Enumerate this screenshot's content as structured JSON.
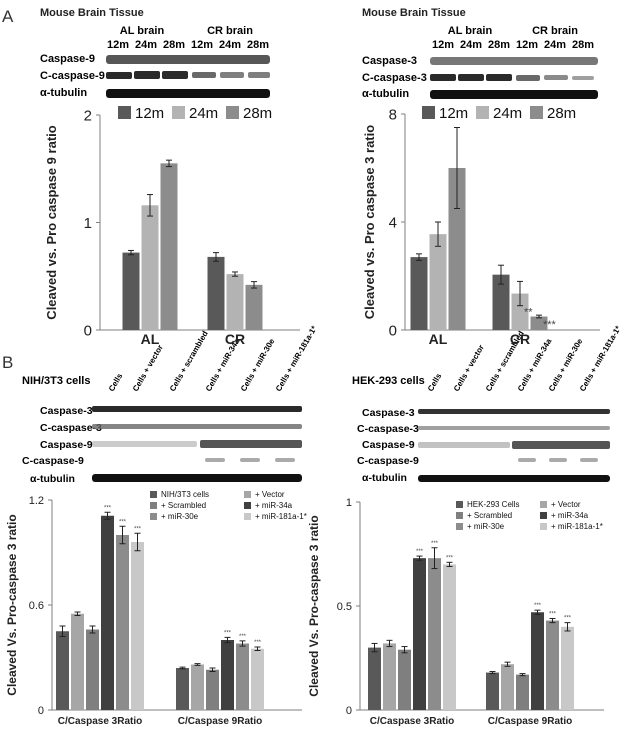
{
  "panels": {
    "A": "A",
    "B": "B"
  },
  "colors": {
    "s12m": "#595959",
    "s24m": "#b3b3b3",
    "s28m": "#8c8c8c",
    "nih": "#595959",
    "scr": "#7f7f7f",
    "e30": "#8c8c8c",
    "vec": "#a6a6a6",
    "m34": "#404040",
    "m181": "#c8c8c8"
  },
  "blotA1": {
    "header": "Mouse Brain Tissue",
    "groups": [
      "AL brain",
      "CR brain"
    ],
    "lanes": [
      "12m",
      "24m",
      "28m",
      "12m",
      "24m",
      "28m"
    ],
    "rows": [
      "Caspase-9",
      "C-caspase-9",
      "α-tubulin"
    ]
  },
  "blotA2": {
    "header": "Mouse Brain Tissue",
    "groups": [
      "AL brain",
      "CR brain"
    ],
    "lanes": [
      "12m",
      "24m",
      "28m",
      "12m",
      "24m",
      "28m"
    ],
    "rows": [
      "Caspase-3",
      "C-caspase-3",
      "α-tubulin"
    ]
  },
  "blotB1": {
    "header": "NIH/3T3 cells",
    "lanes": [
      "Cells",
      "Cells + vector",
      "Cells + scrambled",
      "Cells + miR-34a",
      "Cells + miR-30e",
      "Cells + miR-181a-1*"
    ],
    "rows": [
      "Caspase-3",
      "C-caspase-3",
      "Caspase-9",
      "C-caspase-9",
      "α-tubulin"
    ]
  },
  "blotB2": {
    "header": "HEK-293 cells",
    "lanes": [
      "Cells",
      "Cells + vector",
      "Cells + scrambled",
      "Cells + miR-34a",
      "Cells + miR-30e",
      "Cells + miR-181a-1*"
    ],
    "rows": [
      "Caspase-3",
      "C-caspase-3",
      "Caspase-9",
      "C-caspase-9",
      "α-tubulin"
    ]
  },
  "chart_data": [
    {
      "type": "bar",
      "id": "A1",
      "title": "",
      "xlabel": "",
      "ylabel": "Cleaved vs. Pro caspase 9 ratio",
      "ylim": [
        0,
        2
      ],
      "yticks": [
        "0",
        "1",
        "2"
      ],
      "categories": [
        "AL",
        "CR"
      ],
      "legend": "top",
      "series": [
        {
          "name": "12m",
          "values": [
            0.72,
            0.68
          ],
          "errors": [
            0.02,
            0.04
          ],
          "stars": [
            "",
            ""
          ]
        },
        {
          "name": "24m",
          "values": [
            1.16,
            0.52
          ],
          "errors": [
            0.1,
            0.02
          ],
          "stars": [
            "",
            ""
          ]
        },
        {
          "name": "28m",
          "values": [
            1.55,
            0.42
          ],
          "errors": [
            0.03,
            0.03
          ],
          "stars": [
            "",
            ""
          ]
        }
      ]
    },
    {
      "type": "bar",
      "id": "A2",
      "title": "",
      "xlabel": "",
      "ylabel": "Cleaved vs. Pro caspase 3 ratio",
      "ylim": [
        0,
        8
      ],
      "yticks": [
        "0",
        "4",
        "8"
      ],
      "categories": [
        "AL",
        "CR"
      ],
      "legend": "top",
      "series": [
        {
          "name": "12m",
          "values": [
            2.7,
            2.05
          ],
          "errors": [
            0.12,
            0.35
          ],
          "stars": [
            "",
            ""
          ]
        },
        {
          "name": "24m",
          "values": [
            3.55,
            1.35
          ],
          "errors": [
            0.45,
            0.45
          ],
          "stars": [
            "",
            "**"
          ]
        },
        {
          "name": "28m",
          "values": [
            6.0,
            0.5
          ],
          "errors": [
            1.5,
            0.05
          ],
          "stars": [
            "",
            "***"
          ]
        }
      ]
    },
    {
      "type": "bar",
      "id": "B1",
      "title": "",
      "xlabel": "",
      "ylabel": "Cleaved Vs. Pro-caspase 3 ratio",
      "ylim": [
        0,
        1.2
      ],
      "yticks": [
        "0",
        "0.6",
        "1.2"
      ],
      "categories": [
        "C/Caspase 3Ratio",
        "C/Caspase 9Ratio"
      ],
      "legend": "top-right",
      "series": [
        {
          "name": "NIH/3T3 cells",
          "values": [
            0.45,
            0.24
          ],
          "errors": [
            0.03,
            0.005
          ],
          "stars": [
            "",
            ""
          ]
        },
        {
          "name": "+ Vector",
          "values": [
            0.55,
            0.26
          ],
          "errors": [
            0.01,
            0.005
          ],
          "stars": [
            "",
            ""
          ]
        },
        {
          "name": "+ Scrambled",
          "values": [
            0.46,
            0.23
          ],
          "errors": [
            0.02,
            0.01
          ],
          "stars": [
            "",
            ""
          ]
        },
        {
          "name": "+ miR-34a",
          "values": [
            1.11,
            0.4
          ],
          "errors": [
            0.02,
            0.015
          ],
          "stars": [
            "***",
            "***"
          ]
        },
        {
          "name": "+ miR-30e",
          "values": [
            1.0,
            0.38
          ],
          "errors": [
            0.05,
            0.015
          ],
          "stars": [
            "***",
            "***"
          ]
        },
        {
          "name": "+ miR-181a-1*",
          "values": [
            0.96,
            0.35
          ],
          "errors": [
            0.05,
            0.01
          ],
          "stars": [
            "***",
            "***"
          ]
        }
      ]
    },
    {
      "type": "bar",
      "id": "B2",
      "title": "",
      "xlabel": "",
      "ylabel": "Cleaved Vs. Pro-caspase 3 ratio",
      "ylim": [
        0,
        1
      ],
      "yticks": [
        "0",
        "0.5",
        "1"
      ],
      "categories": [
        "C/Caspase 3Ratio",
        "C/Caspase 9Ratio"
      ],
      "legend": "top-right",
      "series": [
        {
          "name": "HEK-293 Cells",
          "values": [
            0.3,
            0.18
          ],
          "errors": [
            0.02,
            0.005
          ],
          "stars": [
            "",
            ""
          ]
        },
        {
          "name": "+ Vector",
          "values": [
            0.32,
            0.22
          ],
          "errors": [
            0.015,
            0.01
          ],
          "stars": [
            "",
            ""
          ]
        },
        {
          "name": "+ Scrambled",
          "values": [
            0.29,
            0.17
          ],
          "errors": [
            0.015,
            0.005
          ],
          "stars": [
            "",
            ""
          ]
        },
        {
          "name": "+ miR-34a",
          "values": [
            0.73,
            0.47
          ],
          "errors": [
            0.01,
            0.01
          ],
          "stars": [
            "***",
            "***"
          ]
        },
        {
          "name": "+ miR-30e",
          "values": [
            0.73,
            0.43
          ],
          "errors": [
            0.05,
            0.01
          ],
          "stars": [
            "***",
            "***"
          ]
        },
        {
          "name": "+ miR-181a-1*",
          "values": [
            0.7,
            0.4
          ],
          "errors": [
            0.01,
            0.02
          ],
          "stars": [
            "***",
            "***"
          ]
        }
      ]
    }
  ]
}
